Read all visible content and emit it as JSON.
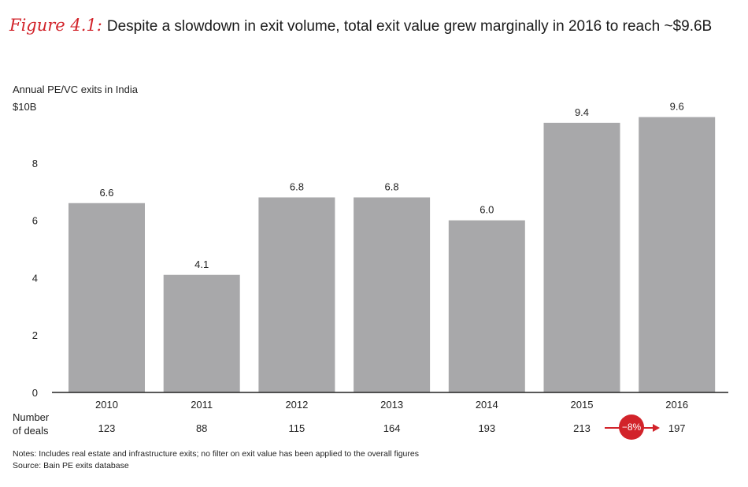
{
  "title": {
    "figure_label": "Figure 4.1:",
    "text": "Despite a slowdown in exit volume, total exit value grew marginally in 2016 to reach ~$9.6B"
  },
  "chart_data": {
    "type": "bar",
    "title": "Despite a slowdown in exit volume, total exit value grew marginally in 2016 to reach ~$9.6B",
    "ylabel": "Annual PE/VC exits in India",
    "y_unit_label": "$10B",
    "categories": [
      "2010",
      "2011",
      "2012",
      "2013",
      "2014",
      "2015",
      "2016"
    ],
    "values": [
      6.6,
      4.1,
      6.8,
      6.8,
      6.0,
      9.4,
      9.6
    ],
    "value_labels": [
      "6.6",
      "4.1",
      "6.8",
      "6.8",
      "6.0",
      "9.4",
      "9.6"
    ],
    "ylim": [
      0,
      10
    ],
    "yticks": [
      0,
      2,
      4,
      6,
      8
    ],
    "grid": false,
    "deals_label_line1": "Number",
    "deals_label_line2": "of deals",
    "deals": [
      "123",
      "88",
      "115",
      "164",
      "193",
      "213",
      "197"
    ],
    "change_badge": "−8%",
    "bar_color": "#a8a8aa",
    "accent_color": "#d2232a"
  },
  "notes": {
    "line1": "Notes: Includes real estate and infrastructure exits; no filter on exit value has been applied to the overall figures",
    "line2": "Source: Bain PE exits database"
  }
}
